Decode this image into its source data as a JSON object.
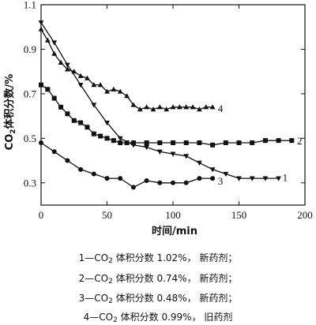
{
  "chart_data": {
    "type": "line",
    "title": "",
    "xlabel": "时间/min",
    "ylabel": {
      "pre": "CO",
      "sub": "2",
      "post": "体积分数/%"
    },
    "xlim": [
      0,
      200
    ],
    "ylim": [
      0.2,
      1.1
    ],
    "x_ticks": [
      0,
      50,
      100,
      150,
      200
    ],
    "y_ticks": [
      0.3,
      0.5,
      0.7,
      0.9,
      1.1
    ],
    "x_tick_labels": [
      "0",
      "50",
      "100",
      "150",
      "200"
    ],
    "y_tick_labels": [
      "0.3",
      "0.5",
      "0.7",
      "0.9",
      "1.1"
    ],
    "grid": false,
    "series": [
      {
        "name": "1",
        "marker": "triangle-down",
        "x": [
          0,
          10,
          20,
          30,
          40,
          50,
          60,
          70,
          80,
          90,
          100,
          110,
          120,
          130,
          140,
          150,
          160,
          170,
          180
        ],
        "y": [
          1.02,
          0.93,
          0.83,
          0.74,
          0.65,
          0.57,
          0.5,
          0.47,
          0.46,
          0.44,
          0.43,
          0.42,
          0.39,
          0.36,
          0.34,
          0.32,
          0.32,
          0.32,
          0.32
        ],
        "label_at": [
          183,
          0.325
        ]
      },
      {
        "name": "2",
        "marker": "square",
        "x": [
          0,
          5,
          10,
          15,
          20,
          25,
          30,
          35,
          40,
          45,
          50,
          55,
          60,
          65,
          70,
          80,
          90,
          100,
          110,
          120,
          130,
          140,
          150,
          160,
          170,
          180,
          190
        ],
        "y": [
          0.74,
          0.72,
          0.68,
          0.64,
          0.61,
          0.58,
          0.57,
          0.55,
          0.52,
          0.51,
          0.5,
          0.49,
          0.48,
          0.48,
          0.48,
          0.48,
          0.48,
          0.48,
          0.48,
          0.48,
          0.47,
          0.48,
          0.48,
          0.48,
          0.49,
          0.49,
          0.49
        ],
        "label_at": [
          194,
          0.49
        ]
      },
      {
        "name": "3",
        "marker": "circle",
        "x": [
          0,
          10,
          20,
          30,
          40,
          50,
          60,
          70,
          80,
          90,
          100,
          110,
          120,
          130
        ],
        "y": [
          0.48,
          0.44,
          0.4,
          0.36,
          0.34,
          0.32,
          0.32,
          0.28,
          0.31,
          0.3,
          0.3,
          0.3,
          0.32,
          0.32
        ],
        "label_at": [
          134,
          0.31
        ]
      },
      {
        "name": "4",
        "marker": "triangle-up",
        "x": [
          0,
          5,
          10,
          15,
          20,
          25,
          30,
          35,
          40,
          45,
          50,
          55,
          60,
          65,
          70,
          75,
          80,
          85,
          90,
          95,
          100,
          105,
          110,
          115,
          120,
          125,
          130
        ],
        "y": [
          0.99,
          0.94,
          0.88,
          0.84,
          0.81,
          0.8,
          0.78,
          0.77,
          0.74,
          0.74,
          0.71,
          0.72,
          0.71,
          0.69,
          0.65,
          0.63,
          0.64,
          0.63,
          0.64,
          0.63,
          0.64,
          0.64,
          0.64,
          0.64,
          0.63,
          0.64,
          0.64
        ],
        "label_at": [
          134,
          0.635
        ]
      }
    ]
  },
  "caption": [
    {
      "num": "1",
      "pre": "—CO",
      "sub": "2",
      "post": " 体积分数 1.02%，  新药剂；"
    },
    {
      "num": "2",
      "pre": "—CO",
      "sub": "2",
      "post": " 体积分数 0.74%，  新药剂；"
    },
    {
      "num": "3",
      "pre": "—CO",
      "sub": "2",
      "post": " 体积分数 0.48%，  新药剂；"
    },
    {
      "num": "4",
      "pre": "—CO",
      "sub": "2",
      "post": " 体积分数 0.99%，  旧药剂"
    }
  ]
}
